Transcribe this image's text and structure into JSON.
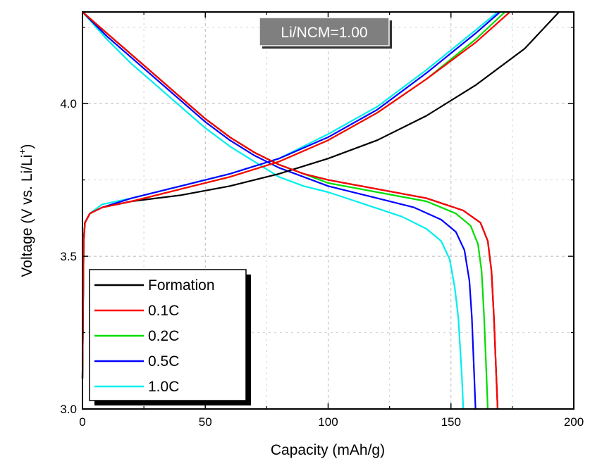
{
  "chart_data": {
    "type": "line",
    "xlabel": "Capacity (mAh/g)",
    "ylabel": {
      "main": "Voltage (V vs. Li/Li",
      "sup": "+",
      "end": ")"
    },
    "xlim": [
      0,
      200
    ],
    "ylim": [
      3.0,
      4.3
    ],
    "x_ticks": [
      0,
      50,
      100,
      150,
      200
    ],
    "x_tick_labels": [
      "0",
      "50",
      "100",
      "150",
      "200"
    ],
    "y_ticks": [
      3.0,
      3.5,
      4.0
    ],
    "y_tick_labels": [
      "3.0",
      "3.5",
      "4.0"
    ],
    "grid": true,
    "legend_placement": "bottom-left",
    "annotation": "Li/NCM=1.00",
    "series": [
      {
        "name": "Formation",
        "color": "#000000",
        "charge": [
          [
            0,
            3.1
          ],
          [
            0.5,
            3.55
          ],
          [
            1,
            3.61
          ],
          [
            3,
            3.64
          ],
          [
            8,
            3.66
          ],
          [
            20,
            3.68
          ],
          [
            40,
            3.7
          ],
          [
            60,
            3.73
          ],
          [
            80,
            3.77
          ],
          [
            100,
            3.82
          ],
          [
            120,
            3.88
          ],
          [
            140,
            3.96
          ],
          [
            160,
            4.06
          ],
          [
            180,
            4.18
          ],
          [
            194,
            4.3
          ]
        ],
        "discharge": [
          [
            0,
            4.3
          ],
          [
            10,
            4.23
          ],
          [
            20,
            4.16
          ],
          [
            30,
            4.09
          ],
          [
            40,
            4.02
          ],
          [
            50,
            3.95
          ],
          [
            60,
            3.89
          ],
          [
            70,
            3.84
          ],
          [
            80,
            3.8
          ],
          [
            90,
            3.77
          ],
          [
            100,
            3.75
          ],
          [
            120,
            3.72
          ],
          [
            140,
            3.69
          ],
          [
            155,
            3.65
          ],
          [
            162,
            3.61
          ],
          [
            165,
            3.55
          ],
          [
            166.5,
            3.45
          ],
          [
            167.5,
            3.3
          ],
          [
            168.5,
            3.1
          ],
          [
            169,
            3.0
          ]
        ]
      },
      {
        "name": "0.1C",
        "color": "#ff0000",
        "charge": [
          [
            0,
            3.1
          ],
          [
            0.5,
            3.55
          ],
          [
            1,
            3.61
          ],
          [
            3,
            3.64
          ],
          [
            8,
            3.66
          ],
          [
            20,
            3.68
          ],
          [
            40,
            3.72
          ],
          [
            60,
            3.76
          ],
          [
            80,
            3.81
          ],
          [
            100,
            3.88
          ],
          [
            120,
            3.97
          ],
          [
            140,
            4.08
          ],
          [
            160,
            4.2
          ],
          [
            174,
            4.3
          ]
        ],
        "discharge": [
          [
            0,
            4.3
          ],
          [
            10,
            4.23
          ],
          [
            20,
            4.16
          ],
          [
            30,
            4.09
          ],
          [
            40,
            4.02
          ],
          [
            50,
            3.95
          ],
          [
            60,
            3.89
          ],
          [
            70,
            3.84
          ],
          [
            80,
            3.8
          ],
          [
            90,
            3.77
          ],
          [
            100,
            3.75
          ],
          [
            120,
            3.72
          ],
          [
            140,
            3.69
          ],
          [
            155,
            3.65
          ],
          [
            162,
            3.61
          ],
          [
            165,
            3.55
          ],
          [
            166.5,
            3.45
          ],
          [
            167.5,
            3.3
          ],
          [
            168.5,
            3.1
          ],
          [
            169,
            3.0
          ]
        ]
      },
      {
        "name": "0.2C",
        "color": "#00dd00",
        "charge": [
          [
            0,
            3.1
          ],
          [
            0.5,
            3.55
          ],
          [
            1,
            3.61
          ],
          [
            3,
            3.64
          ],
          [
            8,
            3.66
          ],
          [
            20,
            3.68
          ],
          [
            40,
            3.72
          ],
          [
            60,
            3.76
          ],
          [
            80,
            3.81
          ],
          [
            100,
            3.88
          ],
          [
            120,
            3.97
          ],
          [
            140,
            4.08
          ],
          [
            160,
            4.21
          ],
          [
            172,
            4.3
          ]
        ],
        "discharge": [
          [
            0,
            4.3
          ],
          [
            10,
            4.23
          ],
          [
            20,
            4.16
          ],
          [
            30,
            4.09
          ],
          [
            40,
            4.02
          ],
          [
            50,
            3.95
          ],
          [
            60,
            3.89
          ],
          [
            70,
            3.84
          ],
          [
            80,
            3.8
          ],
          [
            90,
            3.77
          ],
          [
            100,
            3.74
          ],
          [
            120,
            3.71
          ],
          [
            140,
            3.68
          ],
          [
            152,
            3.64
          ],
          [
            158,
            3.6
          ],
          [
            161,
            3.54
          ],
          [
            162.5,
            3.45
          ],
          [
            163.5,
            3.3
          ],
          [
            164.5,
            3.1
          ],
          [
            165,
            3.0
          ]
        ]
      },
      {
        "name": "0.5C",
        "color": "#0000ff",
        "charge": [
          [
            0,
            3.1
          ],
          [
            0.5,
            3.55
          ],
          [
            1,
            3.61
          ],
          [
            3,
            3.64
          ],
          [
            8,
            3.66
          ],
          [
            20,
            3.69
          ],
          [
            40,
            3.73
          ],
          [
            60,
            3.77
          ],
          [
            80,
            3.82
          ],
          [
            100,
            3.89
          ],
          [
            120,
            3.98
          ],
          [
            140,
            4.1
          ],
          [
            160,
            4.23
          ],
          [
            170,
            4.3
          ]
        ],
        "discharge": [
          [
            0,
            4.3
          ],
          [
            10,
            4.22
          ],
          [
            20,
            4.15
          ],
          [
            30,
            4.08
          ],
          [
            40,
            4.01
          ],
          [
            50,
            3.94
          ],
          [
            60,
            3.88
          ],
          [
            70,
            3.83
          ],
          [
            80,
            3.79
          ],
          [
            90,
            3.76
          ],
          [
            100,
            3.73
          ],
          [
            120,
            3.69
          ],
          [
            135,
            3.66
          ],
          [
            146,
            3.62
          ],
          [
            152,
            3.58
          ],
          [
            155.5,
            3.52
          ],
          [
            157.5,
            3.42
          ],
          [
            158.5,
            3.3
          ],
          [
            159.5,
            3.1
          ],
          [
            160,
            3.0
          ]
        ]
      },
      {
        "name": "1.0C",
        "color": "#00eeee",
        "charge": [
          [
            0,
            3.1
          ],
          [
            0.5,
            3.55
          ],
          [
            1,
            3.61
          ],
          [
            3,
            3.64
          ],
          [
            8,
            3.67
          ],
          [
            20,
            3.69
          ],
          [
            40,
            3.73
          ],
          [
            60,
            3.77
          ],
          [
            80,
            3.82
          ],
          [
            100,
            3.9
          ],
          [
            120,
            3.99
          ],
          [
            140,
            4.11
          ],
          [
            160,
            4.24
          ],
          [
            169,
            4.3
          ]
        ],
        "discharge": [
          [
            0,
            4.3
          ],
          [
            10,
            4.21
          ],
          [
            20,
            4.13
          ],
          [
            30,
            4.06
          ],
          [
            40,
            3.99
          ],
          [
            50,
            3.92
          ],
          [
            60,
            3.86
          ],
          [
            70,
            3.81
          ],
          [
            80,
            3.76
          ],
          [
            90,
            3.73
          ],
          [
            100,
            3.71
          ],
          [
            115,
            3.67
          ],
          [
            130,
            3.63
          ],
          [
            140,
            3.59
          ],
          [
            146,
            3.55
          ],
          [
            149.5,
            3.49
          ],
          [
            151.5,
            3.4
          ],
          [
            153,
            3.3
          ],
          [
            154.5,
            3.1
          ],
          [
            155,
            3.0
          ]
        ]
      }
    ]
  }
}
